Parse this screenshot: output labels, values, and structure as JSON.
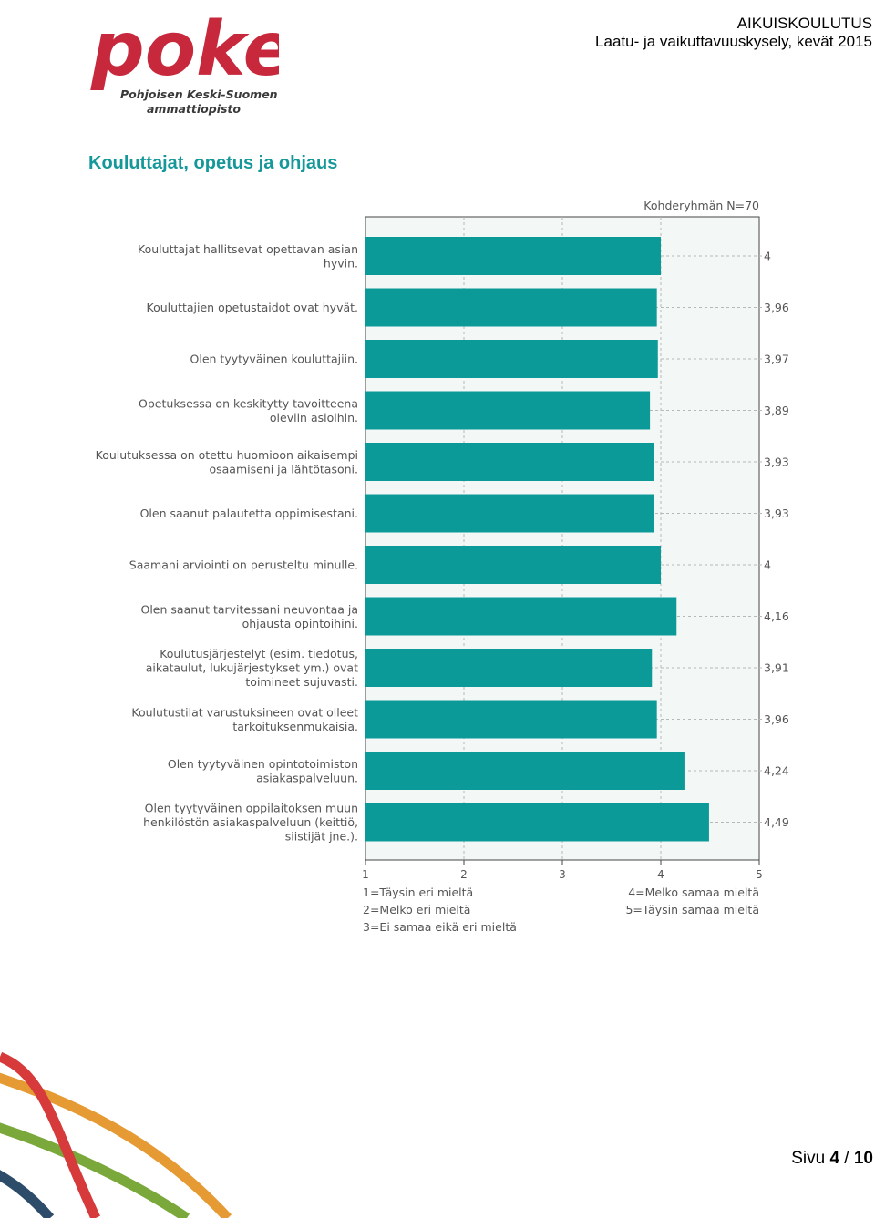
{
  "header": {
    "logo_text": "poke",
    "logo_sub1": "Pohjoisen Keski-Suomen",
    "logo_sub2": "ammattiopisto",
    "title": "AIKUISKOULUTUS",
    "subtitle": "Laatu- ja vaikuttavuuskysely, kevät 2015"
  },
  "section_title": "Kouluttajat, opetus ja ohjaus",
  "colors": {
    "bar": "#0b9a98",
    "accent": "#16989a",
    "logo": "#c8283c",
    "plot_bg": "#f3f8f7",
    "swoosh_red": "#d63a3a",
    "swoosh_orange": "#e59a33",
    "swoosh_green": "#7aa83a",
    "swoosh_blue": "#2c4c6a"
  },
  "chart_data": {
    "type": "bar",
    "orientation": "horizontal",
    "group_label": "Kohderyhmän N=70",
    "categories": [
      [
        "Kouluttajat hallitsevat opettavan asian",
        "hyvin."
      ],
      [
        "Kouluttajien opetustaidot ovat hyvät."
      ],
      [
        "Olen tyytyväinen kouluttajiin."
      ],
      [
        "Opetuksessa on keskitytty tavoitteena",
        "oleviin asioihin."
      ],
      [
        "Koulutuksessa on otettu huomioon aikaisempi",
        "osaamiseni ja lähtötasoni."
      ],
      [
        "Olen saanut palautetta oppimisestani."
      ],
      [
        "Saamani arviointi on perusteltu minulle."
      ],
      [
        "Olen saanut tarvitessani neuvontaa ja",
        "ohjausta opintoihini."
      ],
      [
        "Koulutusjärjestelyt (esim. tiedotus,",
        "aikataulut, lukujärjestykset ym.) ovat",
        "toimineet sujuvasti."
      ],
      [
        "Koulutustilat varustuksineen ovat olleet",
        "tarkoituksenmukaisia."
      ],
      [
        "Olen tyytyväinen opintotoimiston",
        "asiakaspalveluun."
      ],
      [
        "Olen tyytyväinen oppilaitoksen muun",
        "henkilöstön asiakaspalveluun (keittiö,",
        "siistijät jne.)."
      ]
    ],
    "values": [
      4,
      3.96,
      3.97,
      3.89,
      3.93,
      3.93,
      4,
      4.16,
      3.91,
      3.96,
      4.24,
      4.49
    ],
    "value_labels": [
      "4",
      "3,96",
      "3,97",
      "3,89",
      "3,93",
      "3,93",
      "4",
      "4,16",
      "3,91",
      "3,96",
      "4,24",
      "4,49"
    ],
    "xlim": [
      1,
      5
    ],
    "xticks": [
      "1",
      "2",
      "3",
      "4",
      "5"
    ],
    "grid": true,
    "scale_legend_left": [
      "1=Täysin eri mieltä",
      "2=Melko eri mieltä",
      "3=Ei samaa eikä eri mieltä"
    ],
    "scale_legend_right": [
      "4=Melko samaa mieltä",
      "5=Täysin samaa mieltä"
    ]
  },
  "footer": {
    "page_prefix": "Sivu ",
    "page_current": "4",
    "page_sep": " / ",
    "page_total": "10"
  }
}
